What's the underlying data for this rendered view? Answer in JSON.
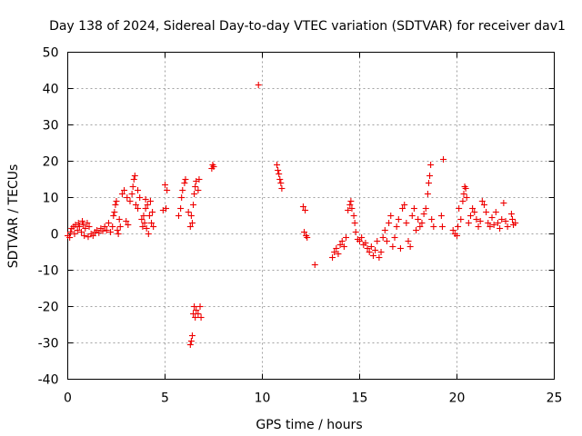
{
  "chart_data": {
    "type": "scatter",
    "title": "Day 138 of 2024, Sidereal Day-to-day VTEC variation (SDTVAR) for receiver dav1",
    "xlabel": "GPS time / hours",
    "ylabel": "SDTVAR / TECUs",
    "xlim": [
      0,
      25
    ],
    "ylim": [
      -40,
      50
    ],
    "xticks": [
      0,
      5,
      10,
      15,
      20,
      25
    ],
    "yticks": [
      -40,
      -30,
      -20,
      -10,
      0,
      10,
      20,
      30,
      40,
      50
    ],
    "xtick_labels": [
      "0",
      "5",
      "10",
      "15",
      "20",
      "25"
    ],
    "ytick_labels": [
      "-40",
      "-30",
      "-20",
      "-10",
      "0",
      "10",
      "20",
      "30",
      "40",
      "50"
    ],
    "grid": true,
    "marker": "+",
    "color": "#ee0000",
    "series": [
      {
        "name": "SDTVAR",
        "points": [
          [
            0.0,
            -0.5
          ],
          [
            0.1,
            -1.0
          ],
          [
            0.15,
            0.5
          ],
          [
            0.2,
            1.5
          ],
          [
            0.3,
            2.0
          ],
          [
            0.35,
            0.0
          ],
          [
            0.4,
            2.5
          ],
          [
            0.5,
            1.0
          ],
          [
            0.55,
            3.0
          ],
          [
            0.6,
            2.0
          ],
          [
            0.7,
            0.5
          ],
          [
            0.75,
            3.5
          ],
          [
            0.8,
            2.5
          ],
          [
            0.85,
            -0.5
          ],
          [
            0.9,
            1.5
          ],
          [
            1.0,
            3.0
          ],
          [
            1.05,
            -0.8
          ],
          [
            1.1,
            2.0
          ],
          [
            1.2,
            0.0
          ],
          [
            1.3,
            -0.5
          ],
          [
            1.4,
            0.5
          ],
          [
            1.5,
            1.0
          ],
          [
            1.6,
            0.3
          ],
          [
            1.7,
            1.5
          ],
          [
            1.8,
            0.8
          ],
          [
            1.9,
            2.0
          ],
          [
            2.0,
            1.0
          ],
          [
            2.1,
            3.0
          ],
          [
            2.2,
            0.5
          ],
          [
            2.3,
            2.0
          ],
          [
            2.35,
            5.0
          ],
          [
            2.4,
            6.0
          ],
          [
            2.45,
            8.0
          ],
          [
            2.5,
            9.0
          ],
          [
            2.55,
            1.0
          ],
          [
            2.6,
            0.0
          ],
          [
            2.65,
            4.0
          ],
          [
            2.7,
            2.0
          ],
          [
            2.8,
            11.0
          ],
          [
            2.9,
            12.0
          ],
          [
            3.0,
            3.5
          ],
          [
            3.05,
            10.0
          ],
          [
            3.1,
            2.5
          ],
          [
            3.2,
            9.0
          ],
          [
            3.3,
            11.0
          ],
          [
            3.35,
            13.0
          ],
          [
            3.4,
            15.0
          ],
          [
            3.45,
            16.0
          ],
          [
            3.5,
            8.0
          ],
          [
            3.6,
            7.0
          ],
          [
            3.7,
            10.0
          ],
          [
            3.8,
            4.0
          ],
          [
            3.85,
            2.0
          ],
          [
            3.9,
            5.0
          ],
          [
            3.95,
            3.0
          ],
          [
            4.0,
            7.0
          ],
          [
            4.05,
            1.5
          ],
          [
            4.1,
            8.0
          ],
          [
            4.15,
            0.0
          ],
          [
            4.2,
            5.0
          ],
          [
            4.25,
            9.0
          ],
          [
            4.3,
            3.0
          ],
          [
            4.35,
            6.0
          ],
          [
            4.4,
            2.0
          ],
          [
            4.0,
            9.5
          ],
          [
            3.6,
            12.0
          ],
          [
            4.9,
            6.5
          ],
          [
            5.0,
            13.5
          ],
          [
            5.05,
            7.0
          ],
          [
            5.1,
            12.0
          ],
          [
            5.7,
            5.0
          ],
          [
            5.8,
            7.0
          ],
          [
            5.85,
            10.0
          ],
          [
            5.9,
            12.0
          ],
          [
            6.0,
            14.0
          ],
          [
            6.05,
            15.0
          ],
          [
            6.2,
            6.0
          ],
          [
            6.3,
            2.0
          ],
          [
            6.35,
            5.0
          ],
          [
            6.4,
            3.0
          ],
          [
            6.45,
            8.0
          ],
          [
            6.5,
            11.0
          ],
          [
            6.55,
            13.0
          ],
          [
            6.6,
            14.5
          ],
          [
            6.7,
            12.0
          ],
          [
            6.75,
            15.0
          ],
          [
            6.3,
            -30.5
          ],
          [
            6.35,
            -29.5
          ],
          [
            6.4,
            -28.0
          ],
          [
            6.45,
            -22.0
          ],
          [
            6.5,
            -20.0
          ],
          [
            6.55,
            -23.0
          ],
          [
            6.6,
            -21.0
          ],
          [
            6.7,
            -22.0
          ],
          [
            6.8,
            -20.0
          ],
          [
            6.85,
            -23.0
          ],
          [
            7.4,
            18.0
          ],
          [
            7.45,
            19.0
          ],
          [
            7.5,
            18.5
          ],
          [
            9.8,
            41.0
          ],
          [
            10.75,
            19.0
          ],
          [
            10.8,
            17.5
          ],
          [
            10.85,
            16.5
          ],
          [
            10.9,
            15.0
          ],
          [
            10.95,
            14.0
          ],
          [
            11.0,
            12.5
          ],
          [
            12.1,
            7.5
          ],
          [
            12.2,
            6.5
          ],
          [
            12.15,
            0.5
          ],
          [
            12.25,
            -0.5
          ],
          [
            12.3,
            -1.0
          ],
          [
            12.7,
            -8.5
          ],
          [
            13.6,
            -6.5
          ],
          [
            13.7,
            -5.0
          ],
          [
            13.8,
            -4.0
          ],
          [
            13.9,
            -5.5
          ],
          [
            14.0,
            -3.0
          ],
          [
            14.1,
            -2.0
          ],
          [
            14.2,
            -3.5
          ],
          [
            14.3,
            -1.0
          ],
          [
            14.4,
            6.5
          ],
          [
            14.5,
            8.0
          ],
          [
            14.55,
            9.0
          ],
          [
            14.6,
            7.0
          ],
          [
            14.7,
            5.0
          ],
          [
            14.75,
            3.0
          ],
          [
            14.8,
            0.5
          ],
          [
            14.9,
            -1.5
          ],
          [
            15.0,
            -2.0
          ],
          [
            15.1,
            -1.0
          ],
          [
            15.2,
            -3.0
          ],
          [
            15.3,
            -2.5
          ],
          [
            15.4,
            -4.0
          ],
          [
            15.5,
            -5.0
          ],
          [
            15.6,
            -3.5
          ],
          [
            15.7,
            -6.0
          ],
          [
            15.8,
            -4.5
          ],
          [
            15.9,
            -2.0
          ],
          [
            16.0,
            -6.5
          ],
          [
            16.1,
            -5.0
          ],
          [
            16.2,
            -1.0
          ],
          [
            16.3,
            1.0
          ],
          [
            16.4,
            -2.0
          ],
          [
            16.5,
            3.0
          ],
          [
            16.6,
            5.0
          ],
          [
            16.7,
            -3.5
          ],
          [
            16.8,
            -1.0
          ],
          [
            16.9,
            2.0
          ],
          [
            17.0,
            4.0
          ],
          [
            17.1,
            -4.0
          ],
          [
            17.2,
            7.0
          ],
          [
            17.3,
            8.0
          ],
          [
            17.4,
            3.0
          ],
          [
            17.5,
            -2.0
          ],
          [
            17.6,
            -3.5
          ],
          [
            17.7,
            5.0
          ],
          [
            17.8,
            7.0
          ],
          [
            17.9,
            1.0
          ],
          [
            18.0,
            4.0
          ],
          [
            18.1,
            2.0
          ],
          [
            18.2,
            3.0
          ],
          [
            18.3,
            5.5
          ],
          [
            18.4,
            7.0
          ],
          [
            18.5,
            11.0
          ],
          [
            18.55,
            14.0
          ],
          [
            18.6,
            16.0
          ],
          [
            18.65,
            19.0
          ],
          [
            18.7,
            4.0
          ],
          [
            18.8,
            2.0
          ],
          [
            19.2,
            5.0
          ],
          [
            19.3,
            20.5
          ],
          [
            19.25,
            2.0
          ],
          [
            19.8,
            1.0
          ],
          [
            19.9,
            0.0
          ],
          [
            20.0,
            -0.5
          ],
          [
            20.05,
            2.0
          ],
          [
            20.1,
            7.0
          ],
          [
            20.2,
            4.0
          ],
          [
            20.3,
            9.0
          ],
          [
            20.35,
            11.0
          ],
          [
            20.4,
            13.0
          ],
          [
            20.45,
            12.5
          ],
          [
            20.5,
            10.0
          ],
          [
            20.6,
            3.0
          ],
          [
            20.7,
            5.0
          ],
          [
            20.8,
            7.0
          ],
          [
            20.9,
            6.0
          ],
          [
            21.0,
            4.0
          ],
          [
            21.1,
            2.0
          ],
          [
            21.2,
            3.5
          ],
          [
            21.3,
            9.0
          ],
          [
            21.4,
            8.0
          ],
          [
            21.5,
            6.0
          ],
          [
            21.6,
            3.0
          ],
          [
            21.7,
            2.0
          ],
          [
            21.8,
            4.5
          ],
          [
            21.9,
            2.5
          ],
          [
            22.0,
            6.0
          ],
          [
            22.1,
            3.0
          ],
          [
            22.2,
            1.5
          ],
          [
            22.3,
            4.0
          ],
          [
            22.4,
            8.5
          ],
          [
            22.5,
            3.5
          ],
          [
            22.6,
            2.0
          ],
          [
            22.8,
            5.5
          ],
          [
            22.9,
            2.5
          ],
          [
            23.0,
            3.0
          ],
          [
            22.85,
            4.0
          ]
        ]
      }
    ]
  }
}
